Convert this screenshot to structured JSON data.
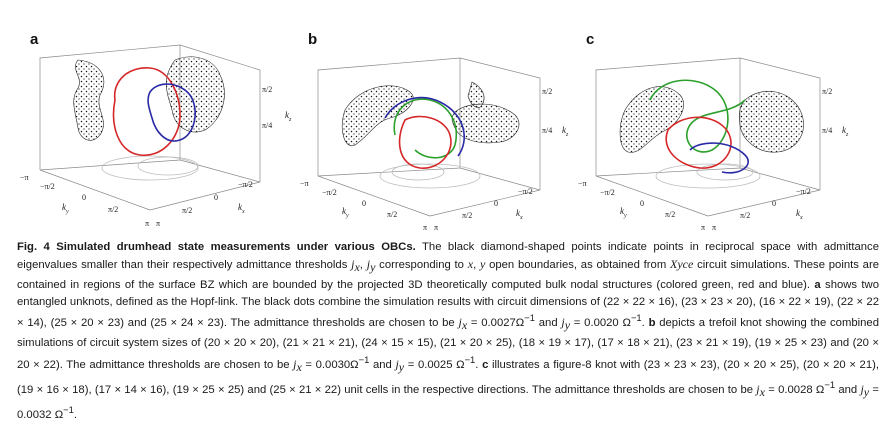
{
  "figure": {
    "panels": [
      {
        "label": "a",
        "ticks": {
          "k_x": [
            "π/2",
            "π/4",
            "π"
          ],
          "k_y": [
            "−π",
            "−π/2",
            "0",
            "π/2",
            "π"
          ],
          "k_z_left": [
            "−π/2",
            "0",
            "π/2",
            "π"
          ]
        },
        "axes": {
          "k_y": "k",
          "k_x": "k",
          "k_z": "k"
        },
        "curves": [
          "red",
          "blue"
        ]
      },
      {
        "label": "b",
        "ticks": {
          "k_x": [
            "π/2",
            "π/4",
            "π"
          ],
          "k_y": [
            "−π",
            "−π/2",
            "0",
            "π/2",
            "π"
          ],
          "k_z_left": [
            "−π/2",
            "0",
            "π/2",
            "π"
          ]
        },
        "axes": {
          "k_y": "k",
          "k_x": "k",
          "k_z": "k"
        },
        "curves": [
          "green",
          "red",
          "blue"
        ]
      },
      {
        "label": "c",
        "ticks": {
          "k_x": [
            "π/2",
            "π/4",
            "π"
          ],
          "k_y": [
            "−π",
            "−π/2",
            "0",
            "π/2",
            "π"
          ],
          "k_z_left": [
            "−π/2",
            "0",
            "π/2",
            "π"
          ]
        },
        "axes": {
          "k_y": "k",
          "k_x": "k",
          "k_z": "k"
        },
        "curves": [
          "green",
          "red",
          "blue"
        ]
      }
    ],
    "tick_labels": {
      "pi_half": "π/2",
      "pi_quarter": "π/4",
      "minus_pi": "−π",
      "minus_pi_half": "−π/2",
      "zero": "0",
      "pi": "π"
    },
    "axis_labels": {
      "ky": "k",
      "ky_sub": "y",
      "kx": "k",
      "kx_sub": "x",
      "kz": "k",
      "kz_sub": "z"
    },
    "colors": {
      "red": "#d62728",
      "blue": "#2a2aa6",
      "green": "#2ca02c",
      "dots": "#111111",
      "box": "#8a8a8a",
      "shadow": "#bdbdbd"
    }
  },
  "caption": {
    "fig_label": "Fig. 4 Simulated drumhead state measurements under various OBCs.",
    "p1": " The black diamond-shaped points indicate points in reciprocal space with admittance eigenvalues smaller than their respectively admittance thresholds ",
    "jx": "j",
    "jx_sub": "x",
    "comma": ", ",
    "jy": "j",
    "jy_sub": "y",
    "p2": " corresponding to ",
    "x": "x",
    "p3": ", ",
    "y": "y",
    "p4": " open boundaries, as obtained from ",
    "xyce": "Xyce",
    "p5": " circuit simulations. These points are contained in regions of the surface BZ which are bounded by the projected 3D theoretically computed bulk nodal structures (colored green, red and blue). ",
    "a": "a",
    "p6": " shows two entangled unknots, defined as the Hopf-link. The black dots combine the simulation results with circuit dimensions of (22 × 22 × 16), (23 × 23 × 20), (16 × 22 × 19), (22 × 22 × 14), (25 × 20 × 23) and (25 × 24 × 23). The admittance thresholds are chosen to be ",
    "a_thresh": "j",
    "a_thresh_x": "x",
    "a_val1": " = 0.0027Ω",
    "a_exp": "−1",
    "a_and": " and ",
    "a_thresh_y": "y",
    "a_val2": " = 0.0020 Ω",
    "a_end": ". ",
    "b": "b",
    "p7": " depicts a trefoil knot showing the combined simulations of circuit system sizes of (20 × 20 × 20), (21 × 21 × 21), (24 × 15 × 15), (21 × 20 × 25), (18 × 19 × 17), (17 × 18 × 21), (23 × 21 × 19), (19 × 25 × 23) and (20 × 20 × 22). The admittance thresholds are chosen to be ",
    "b_val1": " = 0.0030Ω",
    "b_val2": " = 0.0025 Ω",
    "c": "c",
    "p8": " illustrates a figure-8 knot with (23 × 23 × 23), (20 × 20 × 25), (20 × 20 × 21), (19 × 16 × 18), (17 × 14 × 16), (19 × 25 × 25) and (25 × 21 × 22) unit cells in the respective directions. The admittance thresholds are chosen to be ",
    "c_val1": " = 0.0028 Ω",
    "c_val2": " = 0.0032 Ω",
    "c_end": "."
  }
}
